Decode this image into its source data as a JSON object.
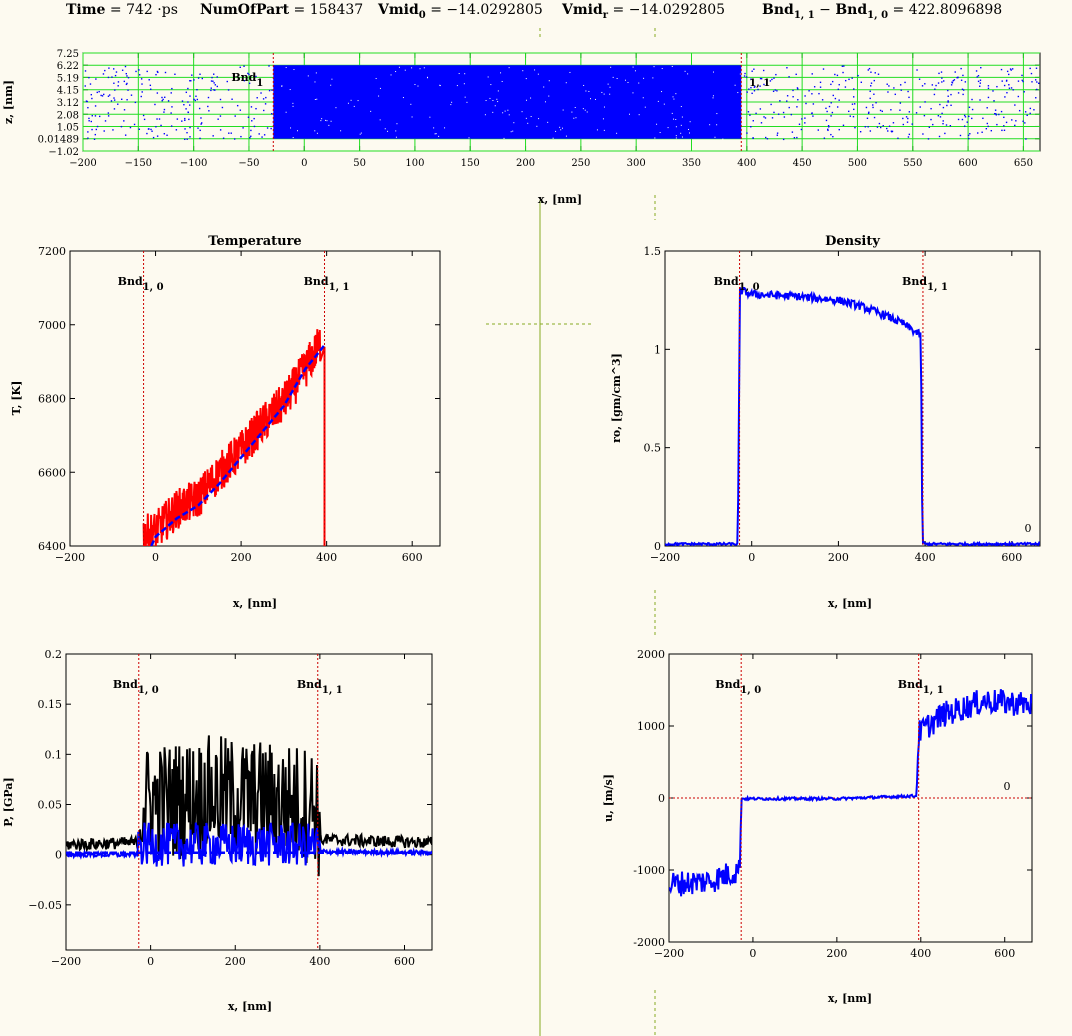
{
  "header": {
    "time": {
      "label": "Time",
      "eq": " = ",
      "value": "742",
      "unit": " ·ps"
    },
    "numofpart": {
      "label": "NumOfPart",
      "eq": " = ",
      "value": "158437"
    },
    "vmid0": {
      "label": "Vmid",
      "sub": "0",
      "eq": " = ",
      "value": "−14.0292805"
    },
    "vmidr": {
      "label": "Vmid",
      "sub": "r",
      "eq": " = ",
      "value": "−14.0292805"
    },
    "bnd_diff": {
      "label_a": "Bnd",
      "sub_a": "1, 1",
      "minus": " − ",
      "label_b": "Bnd",
      "sub_b": "1, 0",
      "eq": " = ",
      "value": "422.8096898"
    }
  },
  "colors": {
    "background": "#fdfaf0",
    "grid_green": "#22dd22",
    "boundary_red": "#cc0000",
    "series_red": "#ff0000",
    "series_blue": "#0000ff",
    "series_black": "#000000",
    "separator_olive": "#88aa22"
  },
  "chart_data": [
    {
      "id": "particles",
      "type": "scatter",
      "title": "",
      "xlabel": "x, [nm]",
      "ylabel": "z, [nm]",
      "xlim": [
        -200,
        665
      ],
      "ylim": [
        -1.02,
        7.25
      ],
      "xticks": [
        -200,
        -150,
        -100,
        -50,
        0,
        50,
        100,
        150,
        200,
        250,
        300,
        350,
        400,
        450,
        500,
        550,
        600,
        650
      ],
      "ytick_values": [
        -1.02,
        0.01489,
        1.05,
        2.08,
        3.12,
        4.15,
        5.19,
        6.22,
        7.25
      ],
      "ytick_labels": [
        "−1.02",
        "0.01489",
        "1.05",
        "2.08",
        "3.12",
        "4.15",
        "5.19",
        "6.22",
        "7.25"
      ],
      "grid": true,
      "dense_region": {
        "x_from": -28,
        "x_to": 395,
        "z_from": 0.01489,
        "z_to": 6.22
      },
      "sparse_region": {
        "z_from": 0.01489,
        "z_to": 6.22,
        "color": "#0000ff"
      },
      "boundaries": [
        {
          "x": -28,
          "label": "Bnd",
          "sub": "1"
        },
        {
          "x": 395,
          "label": "",
          "sub": "1, 1"
        }
      ]
    },
    {
      "id": "temperature",
      "type": "line",
      "title": "Temperature",
      "xlabel": "x, [nm]",
      "ylabel": "T, [K]",
      "xlim": [
        -200,
        665
      ],
      "ylim": [
        6400,
        7200
      ],
      "xticks": [
        -200,
        0,
        200,
        400,
        600
      ],
      "yticks": [
        6400,
        6600,
        6800,
        7000,
        7200
      ],
      "boundaries": [
        {
          "x": -28,
          "label": "Bnd",
          "sub": "1, 0"
        },
        {
          "x": 395,
          "label": "Bnd",
          "sub": "1, 1"
        }
      ],
      "series": [
        {
          "style": "raw",
          "color": "#ff0000",
          "x": [
            -28,
            0,
            50,
            100,
            150,
            200,
            250,
            300,
            350,
            385
          ],
          "y": [
            6430,
            6440,
            6500,
            6530,
            6600,
            6660,
            6730,
            6790,
            6880,
            6950
          ],
          "noise": 55
        },
        {
          "style": "mean",
          "color": "#0000ff",
          "dashed": true,
          "x": [
            -10,
            0,
            50,
            100,
            150,
            200,
            250,
            300,
            350,
            385,
            395
          ],
          "y": [
            6400,
            6425,
            6475,
            6510,
            6570,
            6640,
            6710,
            6780,
            6880,
            6930,
            6945
          ]
        }
      ]
    },
    {
      "id": "density",
      "type": "line",
      "title": "Density",
      "xlabel": "x, [nm]",
      "ylabel": "ro, [gm/cm^3]",
      "xlim": [
        -200,
        665
      ],
      "ylim": [
        0,
        1.5
      ],
      "xticks": [
        -200,
        0,
        200,
        400,
        600
      ],
      "ytick_values": [
        0,
        0.5,
        1,
        1.5
      ],
      "ytick_labels": [
        "0",
        "0.5",
        "1",
        "1.5"
      ],
      "zero_label": "0",
      "boundaries": [
        {
          "x": -28,
          "label": "Bnd",
          "sub": "1, 0"
        },
        {
          "x": 395,
          "label": "Bnd",
          "sub": "1, 1"
        }
      ],
      "series": [
        {
          "style": "raw",
          "color": "#0000ff",
          "x": [
            -200,
            -32,
            -27,
            0,
            100,
            200,
            250,
            300,
            350,
            390,
            394,
            400,
            665
          ],
          "y": [
            0.01,
            0.01,
            1.3,
            1.28,
            1.27,
            1.25,
            1.22,
            1.18,
            1.13,
            1.07,
            0.02,
            0.01,
            0.01
          ],
          "noise": 0.02
        }
      ]
    },
    {
      "id": "pressure",
      "type": "line",
      "title": "",
      "xlabel": "x, [nm]",
      "ylabel": "P, [GPa]",
      "xlim": [
        -200,
        665
      ],
      "ylim": [
        -0.095,
        0.2
      ],
      "xticks": [
        -200,
        0,
        200,
        400,
        600
      ],
      "ytick_values": [
        -0.05,
        0,
        0.05,
        0.1,
        0.15,
        0.2
      ],
      "ytick_labels": [
        "−0.05",
        "0",
        "0.05",
        "0.1",
        "0.15",
        "0.2"
      ],
      "boundaries": [
        {
          "x": -28,
          "label": "Bnd",
          "sub": "1, 0"
        },
        {
          "x": 395,
          "label": "Bnd",
          "sub": "1, 1"
        }
      ],
      "series": [
        {
          "style": "raw",
          "color": "#000000",
          "x": [
            -200,
            -30,
            -25,
            150,
            395,
            400,
            665
          ],
          "y": [
            0.01,
            0.012,
            0.05,
            0.06,
            0.05,
            0.015,
            0.012
          ],
          "noise": 0.06
        },
        {
          "style": "raw",
          "color": "#0000ff",
          "x": [
            -200,
            -30,
            -25,
            150,
            395,
            400,
            665
          ],
          "y": [
            0.0,
            0.0,
            0.01,
            0.01,
            0.01,
            0.003,
            0.002
          ],
          "noise": 0.022
        },
        {
          "style": "mean",
          "color": "#0000ff",
          "dashed": true,
          "x": [
            -200,
            665
          ],
          "y": [
            0.002,
            0.002
          ]
        }
      ]
    },
    {
      "id": "velocity",
      "type": "line",
      "title": "",
      "xlabel": "x, [nm]",
      "ylabel": "u, [m/s]",
      "xlim": [
        -200,
        665
      ],
      "ylim": [
        -2000,
        2000
      ],
      "xticks": [
        -200,
        0,
        200,
        400,
        600
      ],
      "yticks": [
        -2000,
        -1000,
        0,
        1000,
        2000
      ],
      "zero_label": "0",
      "boundaries": [
        {
          "x": -28,
          "label": "Bnd",
          "sub": "1, 0"
        },
        {
          "x": 395,
          "label": "Bnd",
          "sub": "1, 1"
        }
      ],
      "series": [
        {
          "style": "raw",
          "color": "#0000ff",
          "x": [
            -200,
            -100,
            -32,
            -27,
            0,
            200,
            390,
            395,
            450,
            550,
            665
          ],
          "y": [
            -1200,
            -1150,
            -1000,
            -10,
            -10,
            -10,
            30,
            900,
            1150,
            1350,
            1300
          ],
          "noise": 180,
          "noise_mask": [
            [
              -200,
              -30
            ],
            [
              395,
              665
            ]
          ]
        }
      ]
    }
  ]
}
